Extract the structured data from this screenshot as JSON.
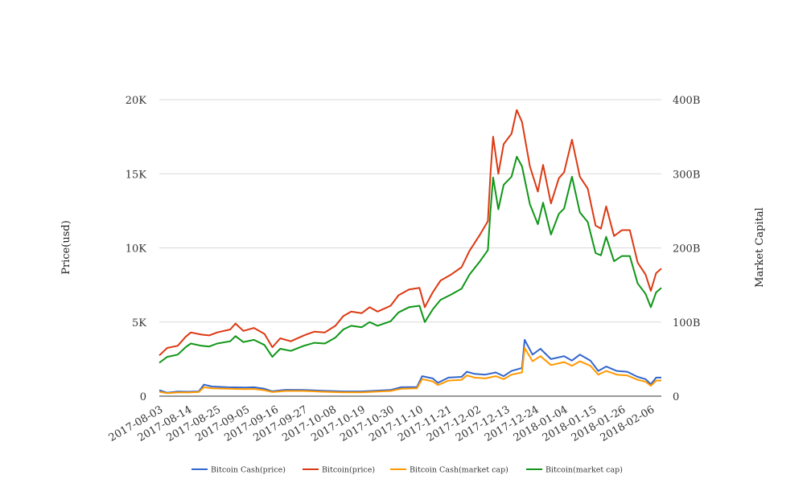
{
  "chart_data": {
    "type": "line",
    "left_axis": {
      "title": "Price(usd)",
      "range": [
        0,
        20000
      ],
      "ticks": [
        0,
        5000,
        10000,
        15000,
        20000
      ],
      "tick_labels": [
        "0",
        "5K",
        "10K",
        "15K",
        "20K"
      ]
    },
    "right_axis": {
      "title": "Market Capital",
      "range": [
        0,
        400000000000
      ],
      "tick_labels": [
        "0",
        "100B",
        "200B",
        "300B",
        "400B"
      ]
    },
    "x_axis": {
      "type": "date",
      "start": "2017-08-03",
      "end": "2018-02-10",
      "tick_labels": [
        "2017-08-03",
        "2017-08-14",
        "2017-08-25",
        "2017-09-05",
        "2017-09-16",
        "2017-09-27",
        "2017-10-08",
        "2017-10-19",
        "2017-10-30",
        "2017-11-10",
        "2017-11-21",
        "2017-12-02",
        "2017-12-13",
        "2017-12-24",
        "2018-01-04",
        "2018-01-15",
        "2018-01-26",
        "2018-02-06"
      ]
    },
    "grid": "horizontal",
    "legend_position": "bottom",
    "series": [
      {
        "name": "Bitcoin Cash(price)",
        "axis": "left",
        "color": "#3366cc",
        "points": [
          [
            "2017-08-03",
            400
          ],
          [
            "2017-08-06",
            230
          ],
          [
            "2017-08-10",
            310
          ],
          [
            "2017-08-14",
            300
          ],
          [
            "2017-08-18",
            320
          ],
          [
            "2017-08-20",
            780
          ],
          [
            "2017-08-23",
            650
          ],
          [
            "2017-08-29",
            600
          ],
          [
            "2017-09-05",
            580
          ],
          [
            "2017-09-08",
            600
          ],
          [
            "2017-09-12",
            500
          ],
          [
            "2017-09-15",
            330
          ],
          [
            "2017-09-20",
            430
          ],
          [
            "2017-09-27",
            420
          ],
          [
            "2017-10-04",
            370
          ],
          [
            "2017-10-12",
            320
          ],
          [
            "2017-10-19",
            320
          ],
          [
            "2017-10-30",
            420
          ],
          [
            "2017-11-03",
            600
          ],
          [
            "2017-11-09",
            620
          ],
          [
            "2017-11-11",
            1350
          ],
          [
            "2017-11-15",
            1200
          ],
          [
            "2017-11-17",
            900
          ],
          [
            "2017-11-21",
            1250
          ],
          [
            "2017-11-26",
            1300
          ],
          [
            "2017-11-28",
            1650
          ],
          [
            "2017-12-01",
            1500
          ],
          [
            "2017-12-05",
            1450
          ],
          [
            "2017-12-09",
            1600
          ],
          [
            "2017-12-12",
            1350
          ],
          [
            "2017-12-15",
            1700
          ],
          [
            "2017-12-19",
            1900
          ],
          [
            "2017-12-20",
            3800
          ],
          [
            "2017-12-23",
            2800
          ],
          [
            "2017-12-26",
            3200
          ],
          [
            "2017-12-30",
            2500
          ],
          [
            "2018-01-04",
            2700
          ],
          [
            "2018-01-07",
            2400
          ],
          [
            "2018-01-10",
            2800
          ],
          [
            "2018-01-14",
            2400
          ],
          [
            "2018-01-17",
            1700
          ],
          [
            "2018-01-20",
            2000
          ],
          [
            "2018-01-24",
            1700
          ],
          [
            "2018-01-28",
            1650
          ],
          [
            "2018-02-01",
            1300
          ],
          [
            "2018-02-04",
            1150
          ],
          [
            "2018-02-06",
            800
          ],
          [
            "2018-02-08",
            1250
          ],
          [
            "2018-02-10",
            1250
          ]
        ]
      },
      {
        "name": "Bitcoin(price)",
        "axis": "left",
        "color": "#dc3912",
        "points": [
          [
            "2017-08-03",
            2750
          ],
          [
            "2017-08-06",
            3250
          ],
          [
            "2017-08-10",
            3400
          ],
          [
            "2017-08-13",
            4000
          ],
          [
            "2017-08-15",
            4300
          ],
          [
            "2017-08-19",
            4150
          ],
          [
            "2017-08-22",
            4100
          ],
          [
            "2017-08-25",
            4300
          ],
          [
            "2017-08-30",
            4500
          ],
          [
            "2017-09-01",
            4900
          ],
          [
            "2017-09-04",
            4400
          ],
          [
            "2017-09-08",
            4600
          ],
          [
            "2017-09-12",
            4200
          ],
          [
            "2017-09-15",
            3300
          ],
          [
            "2017-09-18",
            3900
          ],
          [
            "2017-09-22",
            3700
          ],
          [
            "2017-09-27",
            4100
          ],
          [
            "2017-10-01",
            4350
          ],
          [
            "2017-10-05",
            4300
          ],
          [
            "2017-10-09",
            4750
          ],
          [
            "2017-10-12",
            5400
          ],
          [
            "2017-10-15",
            5700
          ],
          [
            "2017-10-19",
            5600
          ],
          [
            "2017-10-22",
            6000
          ],
          [
            "2017-10-25",
            5700
          ],
          [
            "2017-10-30",
            6100
          ],
          [
            "2017-11-02",
            6800
          ],
          [
            "2017-11-06",
            7200
          ],
          [
            "2017-11-10",
            7300
          ],
          [
            "2017-11-12",
            6000
          ],
          [
            "2017-11-15",
            7000
          ],
          [
            "2017-11-18",
            7800
          ],
          [
            "2017-11-22",
            8200
          ],
          [
            "2017-11-26",
            8700
          ],
          [
            "2017-11-29",
            9800
          ],
          [
            "2017-12-03",
            10900
          ],
          [
            "2017-12-06",
            11800
          ],
          [
            "2017-12-07",
            15000
          ],
          [
            "2017-12-08",
            17500
          ],
          [
            "2017-12-10",
            15000
          ],
          [
            "2017-12-12",
            17000
          ],
          [
            "2017-12-15",
            17700
          ],
          [
            "2017-12-17",
            19300
          ],
          [
            "2017-12-19",
            18500
          ],
          [
            "2017-12-22",
            15500
          ],
          [
            "2017-12-25",
            13800
          ],
          [
            "2017-12-27",
            15600
          ],
          [
            "2017-12-30",
            13000
          ],
          [
            "2018-01-02",
            14700
          ],
          [
            "2018-01-04",
            15100
          ],
          [
            "2018-01-07",
            17300
          ],
          [
            "2018-01-10",
            14800
          ],
          [
            "2018-01-13",
            14000
          ],
          [
            "2018-01-16",
            11500
          ],
          [
            "2018-01-18",
            11300
          ],
          [
            "2018-01-20",
            12800
          ],
          [
            "2018-01-23",
            10800
          ],
          [
            "2018-01-26",
            11200
          ],
          [
            "2018-01-29",
            11200
          ],
          [
            "2018-02-01",
            9000
          ],
          [
            "2018-02-04",
            8200
          ],
          [
            "2018-02-06",
            7100
          ],
          [
            "2018-02-08",
            8300
          ],
          [
            "2018-02-10",
            8600
          ]
        ]
      },
      {
        "name": "Bitcoin Cash(market cap)",
        "axis": "right",
        "color": "#ff9900",
        "points": [
          [
            "2017-08-03",
            6000000000
          ],
          [
            "2017-08-06",
            4000000000
          ],
          [
            "2017-08-10",
            5000000000
          ],
          [
            "2017-08-14",
            5000000000
          ],
          [
            "2017-08-18",
            5500000000
          ],
          [
            "2017-08-20",
            12000000000
          ],
          [
            "2017-08-23",
            10500000000
          ],
          [
            "2017-08-29",
            10000000000
          ],
          [
            "2017-09-05",
            9500000000
          ],
          [
            "2017-09-08",
            9800000000
          ],
          [
            "2017-09-12",
            8000000000
          ],
          [
            "2017-09-15",
            5500000000
          ],
          [
            "2017-09-20",
            7000000000
          ],
          [
            "2017-09-27",
            7000000000
          ],
          [
            "2017-10-04",
            6000000000
          ],
          [
            "2017-10-12",
            5200000000
          ],
          [
            "2017-10-19",
            5200000000
          ],
          [
            "2017-10-30",
            7000000000
          ],
          [
            "2017-11-03",
            10000000000
          ],
          [
            "2017-11-09",
            10500000000
          ],
          [
            "2017-11-11",
            23000000000
          ],
          [
            "2017-11-15",
            20000000000
          ],
          [
            "2017-11-17",
            15000000000
          ],
          [
            "2017-11-21",
            21000000000
          ],
          [
            "2017-11-26",
            22000000000
          ],
          [
            "2017-11-28",
            28000000000
          ],
          [
            "2017-12-01",
            25000000000
          ],
          [
            "2017-12-05",
            24000000000
          ],
          [
            "2017-12-09",
            27000000000
          ],
          [
            "2017-12-12",
            23000000000
          ],
          [
            "2017-12-15",
            29000000000
          ],
          [
            "2017-12-19",
            32000000000
          ],
          [
            "2017-12-20",
            65000000000
          ],
          [
            "2017-12-23",
            47000000000
          ],
          [
            "2017-12-26",
            54000000000
          ],
          [
            "2017-12-30",
            42000000000
          ],
          [
            "2018-01-04",
            46000000000
          ],
          [
            "2018-01-07",
            41000000000
          ],
          [
            "2018-01-10",
            47000000000
          ],
          [
            "2018-01-14",
            41000000000
          ],
          [
            "2018-01-17",
            29000000000
          ],
          [
            "2018-01-20",
            34000000000
          ],
          [
            "2018-01-24",
            29000000000
          ],
          [
            "2018-01-28",
            28000000000
          ],
          [
            "2018-02-01",
            22000000000
          ],
          [
            "2018-02-04",
            19500000000
          ],
          [
            "2018-02-06",
            14000000000
          ],
          [
            "2018-02-08",
            21000000000
          ],
          [
            "2018-02-10",
            21000000000
          ]
        ]
      },
      {
        "name": "Bitcoin(market cap)",
        "axis": "right",
        "color": "#109618",
        "points": [
          [
            "2017-08-03",
            45000000000
          ],
          [
            "2017-08-06",
            53000000000
          ],
          [
            "2017-08-10",
            56000000000
          ],
          [
            "2017-08-13",
            66000000000
          ],
          [
            "2017-08-15",
            71000000000
          ],
          [
            "2017-08-19",
            68000000000
          ],
          [
            "2017-08-22",
            67000000000
          ],
          [
            "2017-08-25",
            71000000000
          ],
          [
            "2017-08-30",
            74000000000
          ],
          [
            "2017-09-01",
            81000000000
          ],
          [
            "2017-09-04",
            73000000000
          ],
          [
            "2017-09-08",
            76000000000
          ],
          [
            "2017-09-12",
            69000000000
          ],
          [
            "2017-09-15",
            53000000000
          ],
          [
            "2017-09-18",
            64000000000
          ],
          [
            "2017-09-22",
            61000000000
          ],
          [
            "2017-09-27",
            68000000000
          ],
          [
            "2017-10-01",
            72000000000
          ],
          [
            "2017-10-05",
            71000000000
          ],
          [
            "2017-10-09",
            79000000000
          ],
          [
            "2017-10-12",
            90000000000
          ],
          [
            "2017-10-15",
            95000000000
          ],
          [
            "2017-10-19",
            93000000000
          ],
          [
            "2017-10-22",
            100000000000
          ],
          [
            "2017-10-25",
            95000000000
          ],
          [
            "2017-10-30",
            101000000000
          ],
          [
            "2017-11-02",
            113000000000
          ],
          [
            "2017-11-06",
            120000000000
          ],
          [
            "2017-11-10",
            122000000000
          ],
          [
            "2017-11-12",
            100000000000
          ],
          [
            "2017-11-15",
            117000000000
          ],
          [
            "2017-11-18",
            130000000000
          ],
          [
            "2017-11-22",
            137000000000
          ],
          [
            "2017-11-26",
            145000000000
          ],
          [
            "2017-11-29",
            164000000000
          ],
          [
            "2017-12-03",
            182000000000
          ],
          [
            "2017-12-06",
            197000000000
          ],
          [
            "2017-12-07",
            250000000000
          ],
          [
            "2017-12-08",
            295000000000
          ],
          [
            "2017-12-10",
            252000000000
          ],
          [
            "2017-12-12",
            285000000000
          ],
          [
            "2017-12-15",
            296000000000
          ],
          [
            "2017-12-17",
            323000000000
          ],
          [
            "2017-12-19",
            310000000000
          ],
          [
            "2017-12-22",
            259000000000
          ],
          [
            "2017-12-25",
            232000000000
          ],
          [
            "2017-12-27",
            261000000000
          ],
          [
            "2017-12-30",
            218000000000
          ],
          [
            "2018-01-02",
            246000000000
          ],
          [
            "2018-01-04",
            253000000000
          ],
          [
            "2018-01-07",
            296000000000
          ],
          [
            "2018-01-10",
            248000000000
          ],
          [
            "2018-01-13",
            235000000000
          ],
          [
            "2018-01-16",
            193000000000
          ],
          [
            "2018-01-18",
            190000000000
          ],
          [
            "2018-01-20",
            215000000000
          ],
          [
            "2018-01-23",
            182000000000
          ],
          [
            "2018-01-26",
            189000000000
          ],
          [
            "2018-01-29",
            189000000000
          ],
          [
            "2018-02-01",
            152000000000
          ],
          [
            "2018-02-04",
            138000000000
          ],
          [
            "2018-02-06",
            120000000000
          ],
          [
            "2018-02-08",
            140000000000
          ],
          [
            "2018-02-10",
            146000000000
          ]
        ]
      }
    ]
  }
}
